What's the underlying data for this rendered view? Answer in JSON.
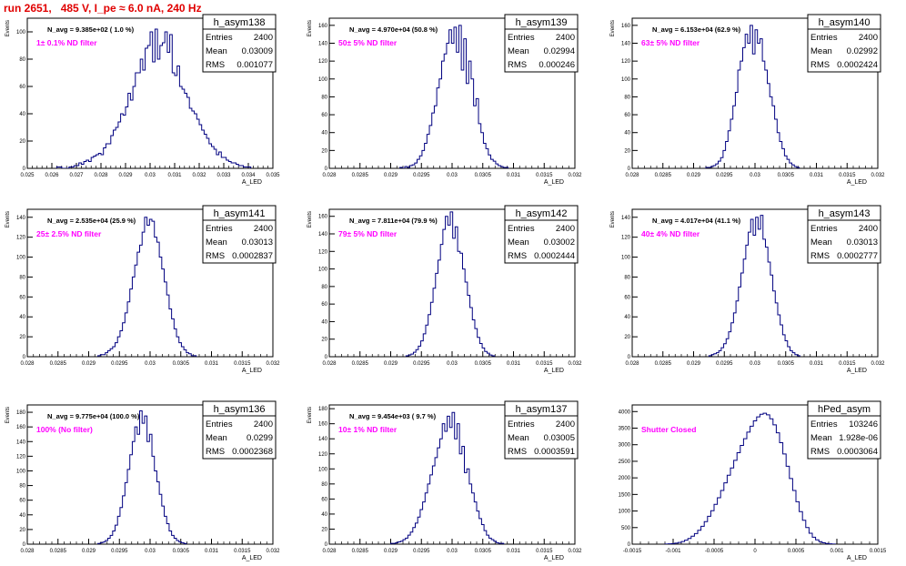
{
  "run_title": "run 2651,   485 V, I_pe ≈ 6.0 nA, 240 Hz",
  "colors": {
    "hist": "#000080",
    "annot": "#ff00ff",
    "title": "#e00000",
    "frame": "#000000"
  },
  "chart_data": [
    {
      "type": "histogram",
      "name": "h_asym138",
      "ylabel": "Events",
      "xlabel": "A_LED",
      "annotation": "1± 0.1% ND filter",
      "navg": "N_avg = 9.385e+02 ( 1.0 %)",
      "stats": {
        "entries": "2400",
        "mean": "0.03009",
        "rms": "0.001077"
      },
      "xlim": [
        0.025,
        0.035
      ],
      "ylim": [
        0,
        110
      ],
      "xticks": [
        "0.025",
        "0.026",
        "0.027",
        "0.028",
        "0.029",
        "0.03",
        "0.031",
        "0.032",
        "0.033",
        "0.034",
        "0.035"
      ],
      "yticks": [
        0,
        20,
        40,
        60,
        80,
        100
      ],
      "grid": false,
      "legend": "top-right",
      "bin_start": 0.0262,
      "bin_width": 0.0001,
      "values": [
        1,
        1,
        0,
        0,
        0,
        1,
        1,
        2,
        2,
        4,
        3,
        5,
        6,
        5,
        8,
        9,
        10,
        11,
        10,
        15,
        18,
        18,
        24,
        28,
        30,
        34,
        40,
        39,
        45,
        55,
        50,
        60,
        70,
        70,
        80,
        72,
        88,
        90,
        100,
        78,
        102,
        80,
        90,
        92,
        100,
        85,
        98,
        70,
        68,
        75,
        60,
        58,
        55,
        52,
        44,
        42,
        40,
        36,
        32,
        28,
        25,
        22,
        18,
        16,
        14,
        10,
        12,
        8,
        8,
        6,
        5,
        4,
        4,
        3,
        2,
        2,
        1,
        1,
        1
      ]
    },
    {
      "type": "histogram",
      "name": "h_asym139",
      "ylabel": "Events",
      "xlabel": "A_LED",
      "annotation": "50± 5% ND filter",
      "navg": "N_avg = 4.970e+04 (50.8 %)",
      "stats": {
        "entries": "2400",
        "mean": "0.02994",
        "rms": "0.000246"
      },
      "xlim": [
        0.028,
        0.032
      ],
      "ylim": [
        0,
        168
      ],
      "xticks": [
        "0.028",
        "0.0285",
        "0.029",
        "0.0295",
        "0.03",
        "0.0305",
        "0.031",
        "0.0315",
        "0.032"
      ],
      "yticks": [
        0,
        20,
        40,
        60,
        80,
        100,
        120,
        140,
        160
      ],
      "grid": false,
      "legend": "top-right",
      "bin_start": 0.02915,
      "bin_width": 4e-05,
      "values": [
        1,
        0,
        2,
        1,
        3,
        4,
        6,
        10,
        14,
        20,
        28,
        38,
        48,
        62,
        70,
        90,
        100,
        120,
        128,
        140,
        155,
        140,
        158,
        130,
        160,
        110,
        145,
        95,
        120,
        100,
        70,
        78,
        50,
        40,
        28,
        22,
        15,
        10,
        8,
        5,
        3,
        2,
        1,
        1
      ]
    },
    {
      "type": "histogram",
      "name": "h_asym140",
      "ylabel": "Events",
      "xlabel": "A_LED",
      "annotation": "63± 5% ND filter",
      "navg": "N_avg = 6.153e+04 (62.9 %)",
      "stats": {
        "entries": "2400",
        "mean": "0.02992",
        "rms": "0.0002424"
      },
      "xlim": [
        0.028,
        0.032
      ],
      "ylim": [
        0,
        168
      ],
      "xticks": [
        "0.028",
        "0.0285",
        "0.029",
        "0.0295",
        "0.03",
        "0.0305",
        "0.031",
        "0.0315",
        "0.032"
      ],
      "yticks": [
        0,
        20,
        40,
        60,
        80,
        100,
        120,
        140,
        160
      ],
      "grid": false,
      "legend": "top-right",
      "bin_start": 0.0292,
      "bin_width": 4e-05,
      "values": [
        1,
        1,
        2,
        3,
        5,
        8,
        12,
        20,
        30,
        42,
        55,
        70,
        85,
        110,
        120,
        135,
        150,
        140,
        160,
        128,
        155,
        140,
        145,
        120,
        110,
        95,
        80,
        70,
        55,
        40,
        30,
        22,
        14,
        10,
        6,
        4,
        2,
        1
      ]
    },
    {
      "type": "histogram",
      "name": "h_asym141",
      "ylabel": "Events",
      "xlabel": "A_LED",
      "annotation": "25± 2.5% ND filter",
      "navg": "N_avg = 2.535e+04 (25.9 %)",
      "stats": {
        "entries": "2400",
        "mean": "0.03013",
        "rms": "0.0002837"
      },
      "xlim": [
        0.028,
        0.032
      ],
      "ylim": [
        0,
        148
      ],
      "xticks": [
        "0.028",
        "0.0285",
        "0.029",
        "0.0295",
        "0.03",
        "0.0305",
        "0.031",
        "0.0315",
        "0.032"
      ],
      "yticks": [
        0,
        20,
        40,
        60,
        80,
        100,
        120,
        140
      ],
      "grid": false,
      "legend": "top-right",
      "bin_start": 0.02915,
      "bin_width": 4e-05,
      "values": [
        1,
        2,
        2,
        4,
        6,
        8,
        10,
        14,
        20,
        26,
        34,
        44,
        55,
        68,
        80,
        92,
        105,
        112,
        125,
        140,
        132,
        138,
        136,
        120,
        115,
        100,
        88,
        75,
        62,
        48,
        38,
        28,
        20,
        14,
        10,
        7,
        4,
        3,
        1,
        1
      ]
    },
    {
      "type": "histogram",
      "name": "h_asym142",
      "ylabel": "Events",
      "xlabel": "A_LED",
      "annotation": "79± 5% ND filter",
      "navg": "N_avg = 7.811e+04 (79.9 %)",
      "stats": {
        "entries": "2400",
        "mean": "0.03002",
        "rms": "0.0002444"
      },
      "xlim": [
        0.028,
        0.032
      ],
      "ylim": [
        0,
        168
      ],
      "xticks": [
        "0.028",
        "0.0285",
        "0.029",
        "0.0295",
        "0.03",
        "0.0305",
        "0.031",
        "0.0315",
        "0.032"
      ],
      "yticks": [
        0,
        20,
        40,
        60,
        80,
        100,
        120,
        140,
        160
      ],
      "grid": false,
      "legend": "top-right",
      "bin_start": 0.02925,
      "bin_width": 4e-05,
      "values": [
        1,
        2,
        3,
        5,
        8,
        12,
        18,
        26,
        36,
        48,
        62,
        78,
        95,
        110,
        128,
        145,
        160,
        150,
        165,
        135,
        148,
        120,
        118,
        100,
        85,
        70,
        56,
        42,
        32,
        22,
        15,
        10,
        6,
        4,
        2,
        1
      ]
    },
    {
      "type": "histogram",
      "name": "h_asym143",
      "ylabel": "Events",
      "xlabel": "A_LED",
      "annotation": "40± 4% ND filter",
      "navg": "N_avg = 4.017e+04 (41.1 %)",
      "stats": {
        "entries": "2400",
        "mean": "0.03013",
        "rms": "0.0002777"
      },
      "xlim": [
        0.028,
        0.032
      ],
      "ylim": [
        0,
        148
      ],
      "xticks": [
        "0.028",
        "0.0285",
        "0.029",
        "0.0295",
        "0.03",
        "0.0305",
        "0.031",
        "0.0315",
        "0.032"
      ],
      "yticks": [
        0,
        20,
        40,
        60,
        80,
        100,
        120,
        140
      ],
      "grid": false,
      "legend": "top-right",
      "bin_start": 0.02925,
      "bin_width": 4e-05,
      "values": [
        1,
        2,
        3,
        4,
        6,
        9,
        13,
        18,
        25,
        34,
        44,
        56,
        70,
        84,
        98,
        112,
        125,
        138,
        122,
        140,
        128,
        142,
        118,
        110,
        95,
        82,
        66,
        54,
        42,
        32,
        22,
        16,
        10,
        6,
        4,
        2,
        1
      ]
    },
    {
      "type": "histogram",
      "name": "h_asym136",
      "ylabel": "Events",
      "xlabel": "A_LED",
      "annotation": "100% (No filter)",
      "navg": "N_avg = 9.775e+04 (100.0 %)",
      "stats": {
        "entries": "2400",
        "mean": "0.0299",
        "rms": "0.0002368"
      },
      "xlim": [
        0.028,
        0.032
      ],
      "ylim": [
        0,
        190
      ],
      "xticks": [
        "0.028",
        "0.0285",
        "0.029",
        "0.0295",
        "0.03",
        "0.0305",
        "0.031",
        "0.0315",
        "0.032"
      ],
      "yticks": [
        0,
        20,
        40,
        60,
        80,
        100,
        120,
        140,
        160,
        180
      ],
      "grid": false,
      "legend": "top-right",
      "bin_start": 0.02915,
      "bin_width": 4e-05,
      "values": [
        1,
        2,
        3,
        5,
        8,
        12,
        18,
        26,
        38,
        50,
        66,
        84,
        102,
        122,
        140,
        160,
        150,
        182,
        165,
        175,
        140,
        150,
        120,
        100,
        85,
        68,
        52,
        38,
        28,
        18,
        12,
        8,
        5,
        3,
        2,
        1
      ]
    },
    {
      "type": "histogram",
      "name": "h_asym137",
      "ylabel": "Events",
      "xlabel": "A_LED",
      "annotation": "10± 1% ND filter",
      "navg": "N_avg = 9.454e+03 ( 9.7 %)",
      "stats": {
        "entries": "2400",
        "mean": "0.03005",
        "rms": "0.0003591"
      },
      "xlim": [
        0.028,
        0.032
      ],
      "ylim": [
        0,
        185
      ],
      "xticks": [
        "0.028",
        "0.0285",
        "0.029",
        "0.0295",
        "0.03",
        "0.0305",
        "0.031",
        "0.0315",
        "0.032"
      ],
      "yticks": [
        0,
        20,
        40,
        60,
        80,
        100,
        120,
        140,
        160,
        180
      ],
      "grid": false,
      "legend": "top-right",
      "bin_start": 0.029,
      "bin_width": 4e-05,
      "values": [
        1,
        1,
        2,
        3,
        4,
        6,
        8,
        12,
        16,
        22,
        28,
        36,
        46,
        56,
        68,
        80,
        92,
        104,
        115,
        128,
        140,
        160,
        150,
        170,
        155,
        175,
        140,
        160,
        120,
        130,
        95,
        100,
        80,
        68,
        56,
        44,
        34,
        26,
        18,
        12,
        8,
        6,
        4,
        2,
        1,
        1
      ]
    },
    {
      "type": "histogram",
      "name": "hPed_asym",
      "ylabel": "",
      "xlabel": "A_LED",
      "annotation": "Shutter Closed",
      "navg": "",
      "stats": {
        "entries": "103246",
        "mean": "1.928e-06",
        "rms": "0.0003064"
      },
      "xlim": [
        -0.0015,
        0.0015
      ],
      "ylim": [
        0,
        4200
      ],
      "xticks": [
        "-0.0015",
        "-0.001",
        "-0.0005",
        "0",
        "0.0005",
        "0.001",
        "0.0015"
      ],
      "yticks": [
        0,
        500,
        1000,
        1500,
        2000,
        2500,
        3000,
        3500,
        4000
      ],
      "grid": false,
      "legend": "top-right",
      "bin_start": -0.0011,
      "bin_width": 4e-05,
      "values": [
        5,
        10,
        18,
        30,
        50,
        80,
        120,
        170,
        240,
        320,
        420,
        540,
        680,
        840,
        1010,
        1200,
        1400,
        1620,
        1850,
        2080,
        2300,
        2530,
        2760,
        2980,
        3180,
        3380,
        3560,
        3720,
        3840,
        3920,
        3950,
        3900,
        3780,
        3600,
        3360,
        3060,
        2720,
        2350,
        1980,
        1620,
        1280,
        980,
        720,
        500,
        330,
        210,
        130,
        75,
        40,
        20,
        10,
        5
      ]
    }
  ]
}
